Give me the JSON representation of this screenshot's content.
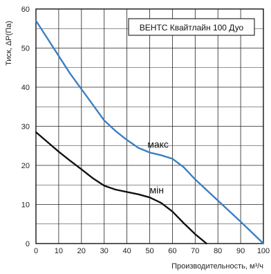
{
  "chart_data": {
    "type": "line",
    "legend_text": "ВЕНТС Квайтлайн 100 Дуо",
    "legend_position": "top-right",
    "xlabel": "Производительность, м³/ч",
    "ylabel": "Тиск, ΔP(Па)",
    "xlim": [
      0,
      100
    ],
    "ylim": [
      0,
      60
    ],
    "x_ticks": [
      0,
      10,
      20,
      30,
      40,
      50,
      60,
      70,
      80,
      90,
      100
    ],
    "y_ticks": [
      0,
      10,
      20,
      30,
      40,
      50,
      60
    ],
    "grid": true,
    "series": [
      {
        "name": "макс",
        "color": "#3a7fc1",
        "points": [
          [
            0,
            57
          ],
          [
            5,
            52.5
          ],
          [
            10,
            48
          ],
          [
            15,
            43.5
          ],
          [
            20,
            39.5
          ],
          [
            25,
            35.5
          ],
          [
            30,
            31.5
          ],
          [
            35,
            28.8
          ],
          [
            40,
            26.5
          ],
          [
            45,
            24.5
          ],
          [
            50,
            23.3
          ],
          [
            55,
            22.6
          ],
          [
            60,
            21.7
          ],
          [
            65,
            19.5
          ],
          [
            70,
            16.4
          ],
          [
            80,
            11
          ],
          [
            90,
            5.6
          ],
          [
            100,
            0
          ]
        ]
      },
      {
        "name": "мін",
        "color": "#111111",
        "points": [
          [
            0,
            28.5
          ],
          [
            5,
            26
          ],
          [
            10,
            23.5
          ],
          [
            15,
            21.2
          ],
          [
            20,
            19
          ],
          [
            25,
            16.7
          ],
          [
            30,
            14.8
          ],
          [
            35,
            13.8
          ],
          [
            40,
            13.2
          ],
          [
            45,
            12.6
          ],
          [
            50,
            11.8
          ],
          [
            55,
            10.4
          ],
          [
            60,
            8.2
          ],
          [
            65,
            5.2
          ],
          [
            70,
            2.4
          ],
          [
            75,
            0
          ]
        ]
      }
    ]
  }
}
